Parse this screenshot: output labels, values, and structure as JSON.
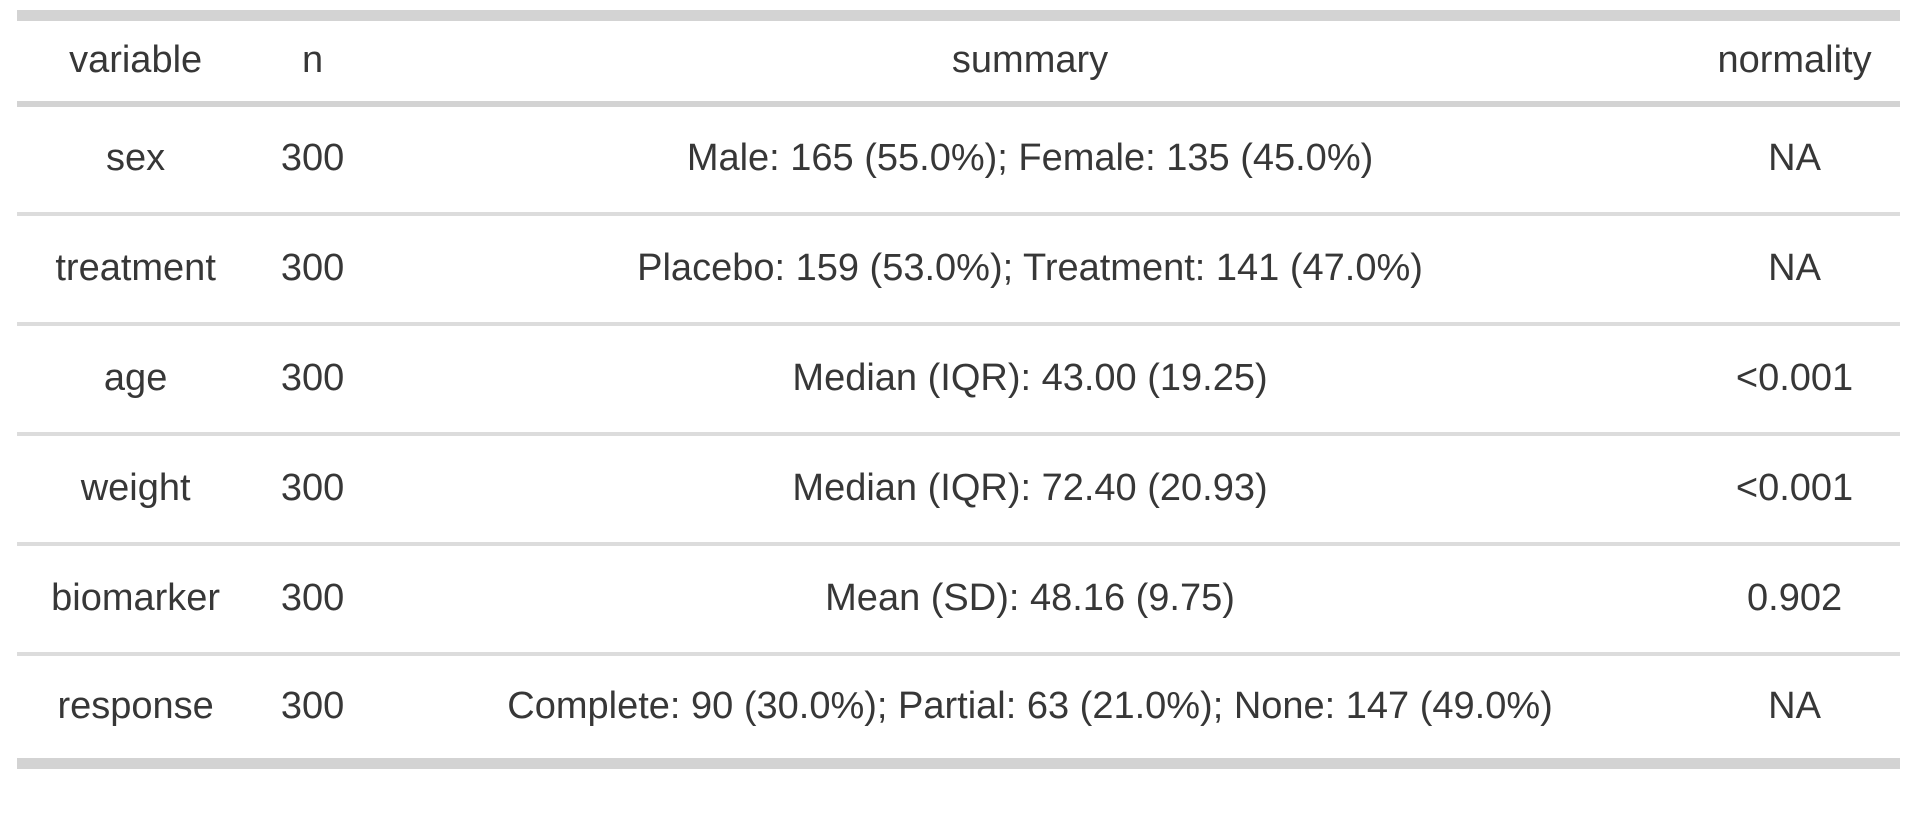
{
  "table": {
    "columns": {
      "variable": "variable",
      "n": "n",
      "summary": "summary",
      "normality": "normality"
    },
    "rows": [
      {
        "variable": "sex",
        "n": "300",
        "summary": "Male: 165 (55.0%); Female: 135 (45.0%)",
        "normality": "NA"
      },
      {
        "variable": "treatment",
        "n": "300",
        "summary": "Placebo: 159 (53.0%); Treatment: 141 (47.0%)",
        "normality": "NA"
      },
      {
        "variable": "age",
        "n": "300",
        "summary": "Median (IQR): 43.00 (19.25)",
        "normality": "<0.001"
      },
      {
        "variable": "weight",
        "n": "300",
        "summary": "Median (IQR): 72.40 (20.93)",
        "normality": "<0.001"
      },
      {
        "variable": "biomarker",
        "n": "300",
        "summary": "Mean (SD): 48.16 (9.75)",
        "normality": "0.902"
      },
      {
        "variable": "response",
        "n": "300",
        "summary": "Complete: 90 (30.0%); Partial: 63 (21.0%); None: 147 (49.0%)",
        "normality": "NA"
      }
    ]
  },
  "colors": {
    "background": "#ffffff",
    "text": "#373737",
    "border_thick": "#d3d3d3",
    "row_divider": "#dcdcdc"
  },
  "chart_data": {
    "type": "table",
    "title": "",
    "columns": [
      "variable",
      "n",
      "summary",
      "normality"
    ],
    "rows": [
      [
        "sex",
        300,
        "Male: 165 (55.0%); Female: 135 (45.0%)",
        "NA"
      ],
      [
        "treatment",
        300,
        "Placebo: 159 (53.0%); Treatment: 141 (47.0%)",
        "NA"
      ],
      [
        "age",
        300,
        "Median (IQR): 43.00 (19.25)",
        "<0.001"
      ],
      [
        "weight",
        300,
        "Median (IQR): 72.40 (20.93)",
        "<0.001"
      ],
      [
        "biomarker",
        300,
        "Mean (SD): 48.16 (9.75)",
        "0.902"
      ],
      [
        "response",
        300,
        "Complete: 90 (30.0%); Partial: 63 (21.0%); None: 147 (49.0%)",
        "NA"
      ]
    ],
    "layout_hints": {
      "cell_alignment": "center",
      "header_weight": "normal",
      "borders": "thick top/bottom, medium header rule, thin row separators"
    }
  }
}
